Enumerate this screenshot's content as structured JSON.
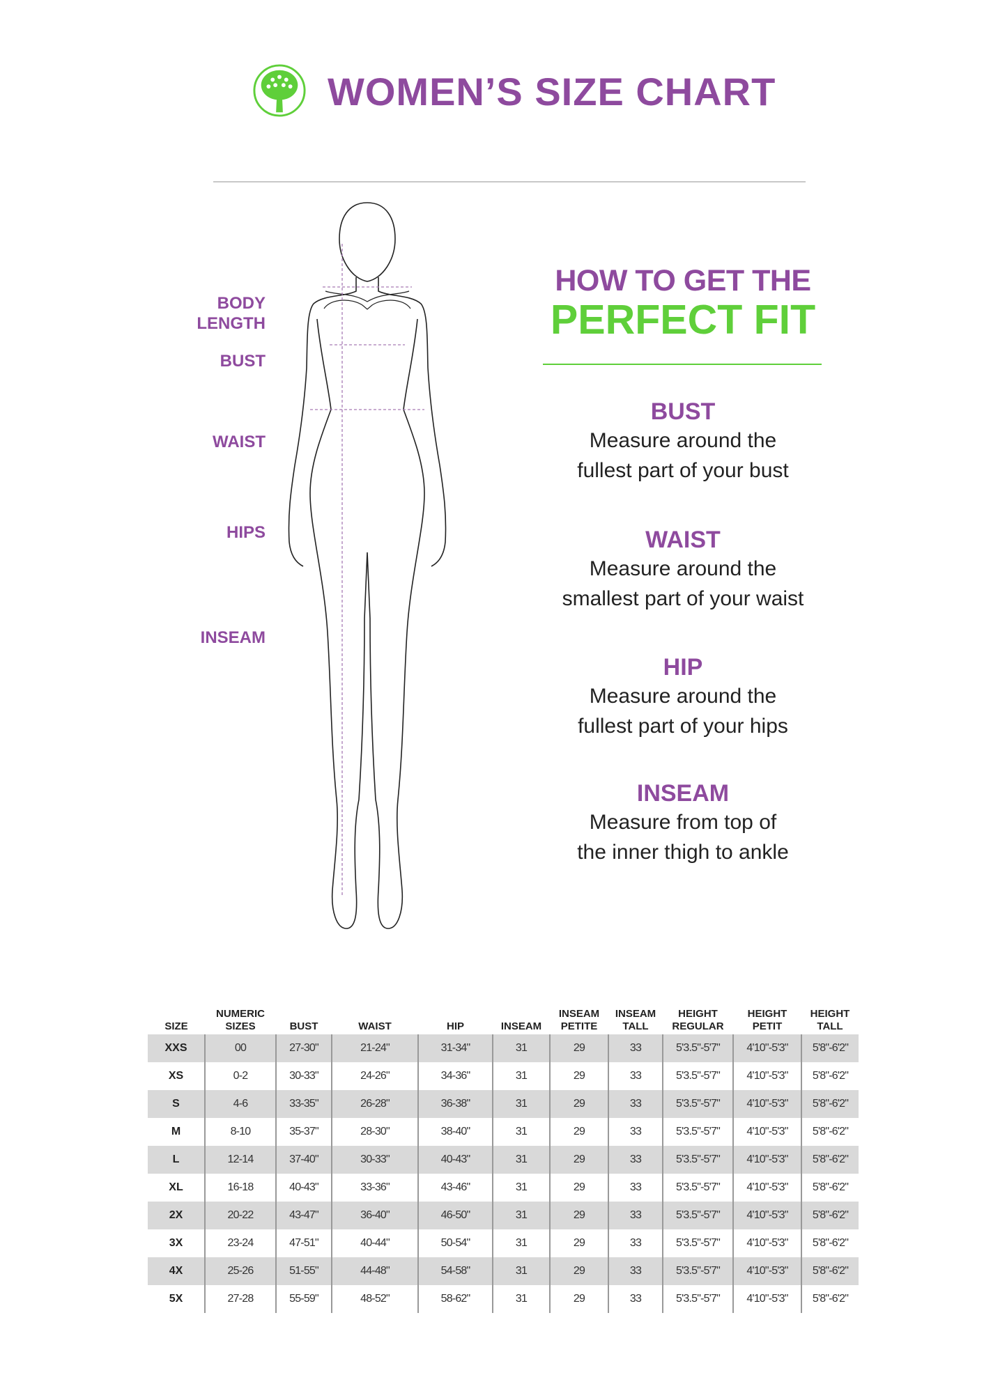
{
  "header": {
    "title": "WOMEN’S SIZE CHART",
    "logo_icon": "tree-in-circle-icon"
  },
  "colors": {
    "purple": "#8e4a9e",
    "green": "#5fcf3a",
    "row_gray": "#d9d9d9"
  },
  "figure_labels": {
    "body_length_1": "BODY",
    "body_length_2": "LENGTH",
    "bust": "BUST",
    "waist": "WAIST",
    "hips": "HIPS",
    "inseam": "INSEAM"
  },
  "guide": {
    "line1": "HOW TO GET THE",
    "line2": "PERFECT FIT",
    "sections": [
      {
        "heading": "BUST",
        "line1": "Measure around the",
        "line2": "fullest part of your bust"
      },
      {
        "heading": "WAIST",
        "line1": "Measure around the",
        "line2": "smallest part of your waist"
      },
      {
        "heading": "HIP",
        "line1": "Measure around the",
        "line2": "fullest part of your hips"
      },
      {
        "heading": "INSEAM",
        "line1": "Measure from top of",
        "line2": "the inner thigh to ankle"
      }
    ]
  },
  "table": {
    "headers": [
      [
        "SIZE"
      ],
      [
        "NUMERIC",
        "SIZES"
      ],
      [
        "BUST"
      ],
      [
        "WAIST"
      ],
      [
        "HIP"
      ],
      [
        "INSEAM"
      ],
      [
        "INSEAM",
        "PETITE"
      ],
      [
        "INSEAM",
        "TALL"
      ],
      [
        "HEIGHT",
        "REGULAR"
      ],
      [
        "HEIGHT",
        "PETIT"
      ],
      [
        "HEIGHT",
        "TALL"
      ]
    ],
    "rows": [
      [
        "XXS",
        "00",
        "27-30\"",
        "21-24\"",
        "31-34\"",
        "31",
        "29",
        "33",
        "5'3.5\"-5'7\"",
        "4'10\"-5'3\"",
        "5'8\"-6'2\""
      ],
      [
        "XS",
        "0-2",
        "30-33\"",
        "24-26\"",
        "34-36\"",
        "31",
        "29",
        "33",
        "5'3.5\"-5'7\"",
        "4'10\"-5'3\"",
        "5'8\"-6'2\""
      ],
      [
        "S",
        "4-6",
        "33-35\"",
        "26-28\"",
        "36-38\"",
        "31",
        "29",
        "33",
        "5'3.5\"-5'7\"",
        "4'10\"-5'3\"",
        "5'8\"-6'2\""
      ],
      [
        "M",
        "8-10",
        "35-37\"",
        "28-30\"",
        "38-40\"",
        "31",
        "29",
        "33",
        "5'3.5\"-5'7\"",
        "4'10\"-5'3\"",
        "5'8\"-6'2\""
      ],
      [
        "L",
        "12-14",
        "37-40\"",
        "30-33\"",
        "40-43\"",
        "31",
        "29",
        "33",
        "5'3.5\"-5'7\"",
        "4'10\"-5'3\"",
        "5'8\"-6'2\""
      ],
      [
        "XL",
        "16-18",
        "40-43\"",
        "33-36\"",
        "43-46\"",
        "31",
        "29",
        "33",
        "5'3.5\"-5'7\"",
        "4'10\"-5'3\"",
        "5'8\"-6'2\""
      ],
      [
        "2X",
        "20-22",
        "43-47\"",
        "36-40\"",
        "46-50\"",
        "31",
        "29",
        "33",
        "5'3.5\"-5'7\"",
        "4'10\"-5'3\"",
        "5'8\"-6'2\""
      ],
      [
        "3X",
        "23-24",
        "47-51\"",
        "40-44\"",
        "50-54\"",
        "31",
        "29",
        "33",
        "5'3.5\"-5'7\"",
        "4'10\"-5'3\"",
        "5'8\"-6'2\""
      ],
      [
        "4X",
        "25-26",
        "51-55\"",
        "44-48\"",
        "54-58\"",
        "31",
        "29",
        "33",
        "5'3.5\"-5'7\"",
        "4'10\"-5'3\"",
        "5'8\"-6'2\""
      ],
      [
        "5X",
        "27-28",
        "55-59\"",
        "48-52\"",
        "58-62\"",
        "31",
        "29",
        "33",
        "5'3.5\"-5'7\"",
        "4'10\"-5'3\"",
        "5'8\"-6'2\""
      ]
    ]
  }
}
